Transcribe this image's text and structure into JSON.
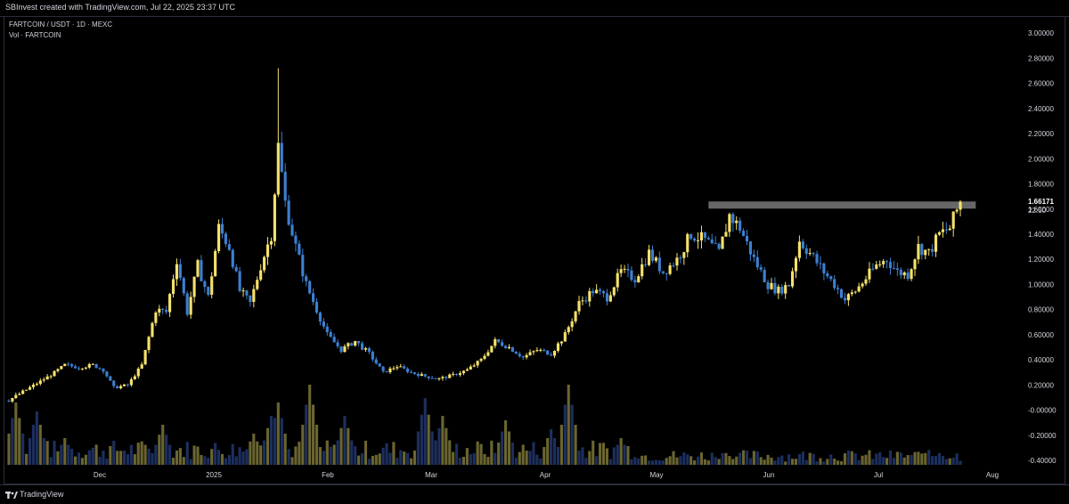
{
  "header": {
    "text": "SBInvest created with TradingView.com, Jul 22, 2025 23:37 UTC"
  },
  "legend": {
    "symbol_line": "FARTCOIN / USDT · 1D · MEXC",
    "vol_line": "Vol · FARTCOIN"
  },
  "branding": {
    "name": "TradingView"
  },
  "price_label": {
    "value": "1.66171",
    "countdown": "22:50"
  },
  "colors": {
    "up": "#f5e16b",
    "down": "#3d7fd1",
    "vol_up": "#6a6530",
    "vol_down": "#1d2f5e",
    "resistance": "#8a8a8a",
    "grid_text": "#d1d4dc"
  },
  "chart_data": {
    "type": "candlestick",
    "title": "FARTCOIN / USDT · 1D · MEXC",
    "interval": "1D",
    "exchange": "MEXC",
    "x_ticks": [
      "Dec",
      "2025",
      "Feb",
      "Mar",
      "Apr",
      "May",
      "Jun",
      "Jul",
      "Aug"
    ],
    "y_ticks": [
      "3.00000",
      "2.80000",
      "2.60000",
      "2.40000",
      "2.20000",
      "2.00000",
      "1.80000",
      "1.60000",
      "1.40000",
      "1.20000",
      "1.00000",
      "0.80000",
      "0.60000",
      "0.40000",
      "0.20000",
      "-0.00000",
      "-0.20000",
      "-0.40000"
    ],
    "ylim": [
      -0.42,
      3.05
    ],
    "grid": false,
    "last_price": 1.66171,
    "resistance_level": 1.62,
    "close_path": [
      [
        0,
        0.08
      ],
      [
        6,
        0.18
      ],
      [
        12,
        0.28
      ],
      [
        16,
        0.36
      ],
      [
        20,
        0.34
      ],
      [
        24,
        0.36
      ],
      [
        27,
        0.32
      ],
      [
        30,
        0.18
      ],
      [
        34,
        0.2
      ],
      [
        38,
        0.36
      ],
      [
        42,
        0.8
      ],
      [
        45,
        0.78
      ],
      [
        48,
        1.2
      ],
      [
        51,
        0.78
      ],
      [
        54,
        1.15
      ],
      [
        57,
        0.9
      ],
      [
        60,
        1.45
      ],
      [
        63,
        1.3
      ],
      [
        66,
        0.95
      ],
      [
        69,
        0.85
      ],
      [
        72,
        1.15
      ],
      [
        75,
        1.4
      ],
      [
        77,
        2.1
      ],
      [
        79,
        1.65
      ],
      [
        82,
        1.3
      ],
      [
        85,
        1.0
      ],
      [
        88,
        0.8
      ],
      [
        91,
        0.6
      ],
      [
        95,
        0.48
      ],
      [
        99,
        0.55
      ],
      [
        103,
        0.45
      ],
      [
        107,
        0.3
      ],
      [
        111,
        0.35
      ],
      [
        115,
        0.3
      ],
      [
        119,
        0.27
      ],
      [
        123,
        0.25
      ],
      [
        127,
        0.28
      ],
      [
        131,
        0.32
      ],
      [
        135,
        0.4
      ],
      [
        139,
        0.55
      ],
      [
        143,
        0.5
      ],
      [
        147,
        0.42
      ],
      [
        151,
        0.48
      ],
      [
        155,
        0.45
      ],
      [
        159,
        0.6
      ],
      [
        163,
        0.85
      ],
      [
        167,
        0.95
      ],
      [
        171,
        0.9
      ],
      [
        175,
        1.1
      ],
      [
        179,
        1.05
      ],
      [
        183,
        1.25
      ],
      [
        187,
        1.1
      ],
      [
        191,
        1.2
      ],
      [
        195,
        1.4
      ],
      [
        199,
        1.35
      ],
      [
        203,
        1.25
      ],
      [
        206,
        1.55
      ],
      [
        209,
        1.45
      ],
      [
        213,
        1.2
      ],
      [
        217,
        1.0
      ],
      [
        220,
        0.95
      ],
      [
        223,
        1.0
      ],
      [
        226,
        1.35
      ],
      [
        229,
        1.25
      ],
      [
        233,
        1.1
      ],
      [
        236,
        1.0
      ],
      [
        239,
        0.88
      ],
      [
        242,
        0.95
      ],
      [
        245,
        1.05
      ],
      [
        248,
        1.15
      ],
      [
        251,
        1.2
      ],
      [
        254,
        1.1
      ],
      [
        257,
        1.08
      ],
      [
        260,
        1.3
      ],
      [
        263,
        1.25
      ],
      [
        266,
        1.4
      ],
      [
        269,
        1.45
      ],
      [
        272,
        1.66
      ]
    ],
    "volume_profile": "low-moderate with spikes near Dec start, late Jan, mid Feb, early Apr, and mid Jul",
    "annotations": [
      "horizontal resistance rectangle near 1.62 from late May to current"
    ]
  }
}
